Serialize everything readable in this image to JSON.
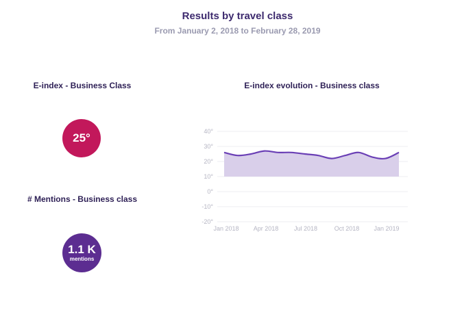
{
  "header": {
    "title": "Results by travel class",
    "subtitle": "From January 2, 2018 to February 28, 2019"
  },
  "eindex": {
    "title": "E-index - Business Class",
    "value": "25°",
    "color": "#c2185b"
  },
  "mentions": {
    "title": "# Mentions - Business class",
    "value": "1.1 K",
    "unit": "mentions",
    "color": "#5c2d91"
  },
  "chart_data": {
    "type": "area",
    "title": "E-index evolution - Business class",
    "xlabel": "",
    "ylabel": "",
    "x_ticks": [
      "Jan 2018",
      "Apr 2018",
      "Jul 2018",
      "Oct 2018",
      "Jan 2019"
    ],
    "y_ticks": [
      "40°",
      "30°",
      "20°",
      "10°",
      "0°",
      "-10°",
      "-20°"
    ],
    "ylim": [
      -20,
      40
    ],
    "baseline": 10,
    "grid": true,
    "line_color": "#6a3fb5",
    "fill_color": "#d9cfea",
    "series": [
      {
        "x": [
          "2018-01",
          "2018-02",
          "2018-03",
          "2018-04",
          "2018-05",
          "2018-06",
          "2018-07",
          "2018-08",
          "2018-09",
          "2018-10",
          "2018-11",
          "2018-12",
          "2019-01",
          "2019-02"
        ],
        "values": [
          26,
          24,
          25,
          27,
          26,
          26,
          25,
          24,
          22,
          24,
          26,
          23,
          22,
          26
        ]
      }
    ]
  }
}
